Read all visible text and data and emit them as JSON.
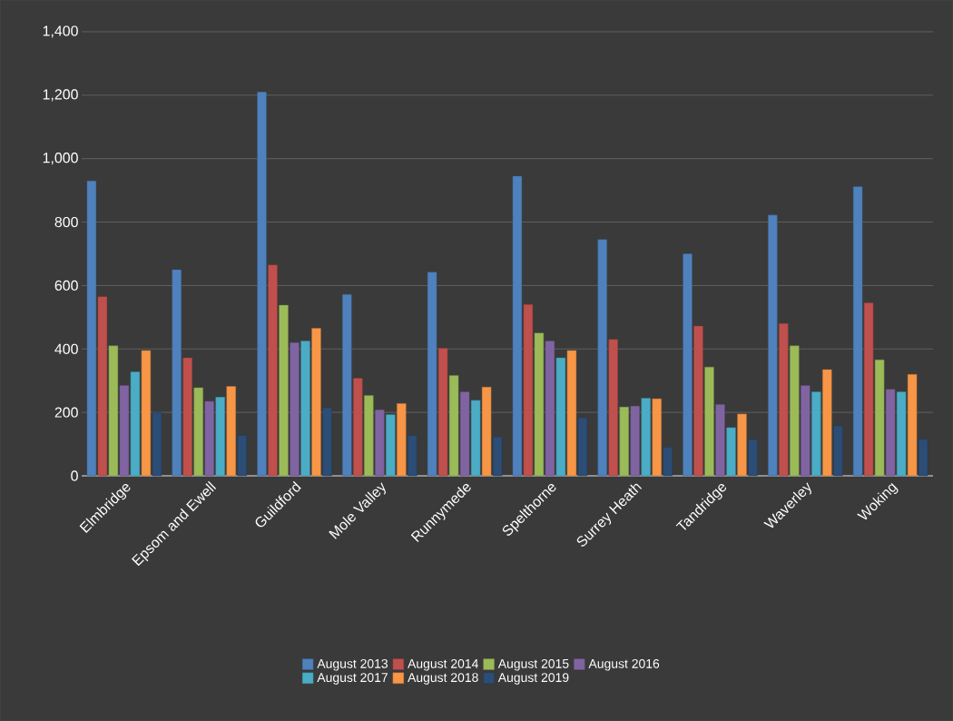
{
  "chart_data": {
    "type": "bar",
    "categories": [
      "Elmbridge",
      "Epsom and Ewell",
      "Guildford",
      "Mole Valley",
      "Runnymede",
      "Spelthorne",
      "Surrey Heath",
      "Tandridge",
      "Waverley",
      "Woking"
    ],
    "series": [
      {
        "name": "August 2013",
        "color": "#4f81bd",
        "values": [
          930,
          650,
          1210,
          572,
          642,
          945,
          745,
          700,
          822,
          912
        ]
      },
      {
        "name": "August 2014",
        "color": "#c0504d",
        "values": [
          565,
          372,
          665,
          308,
          402,
          540,
          430,
          472,
          480,
          545
        ]
      },
      {
        "name": "August 2015",
        "color": "#9bbb59",
        "values": [
          410,
          278,
          538,
          253,
          316,
          450,
          217,
          343,
          410,
          366
        ]
      },
      {
        "name": "August 2016",
        "color": "#8064a2",
        "values": [
          285,
          235,
          420,
          208,
          265,
          425,
          220,
          225,
          285,
          273
        ]
      },
      {
        "name": "August 2017",
        "color": "#4bacc6",
        "values": [
          328,
          248,
          425,
          193,
          238,
          372,
          245,
          152,
          265,
          265
        ]
      },
      {
        "name": "August 2018",
        "color": "#f79646",
        "values": [
          395,
          282,
          465,
          228,
          280,
          395,
          243,
          195,
          335,
          320
        ]
      },
      {
        "name": "August 2019",
        "color": "#2c4d75",
        "values": [
          200,
          128,
          215,
          127,
          123,
          183,
          90,
          115,
          158,
          115
        ]
      }
    ],
    "ylim": [
      0,
      1400
    ],
    "yticks": [
      0,
      200,
      400,
      600,
      800,
      {
        "value": 1000,
        "label": "1,000"
      },
      {
        "value": 1200,
        "label": "1,200"
      },
      {
        "value": 1400,
        "label": "1,400"
      }
    ],
    "grid": "y",
    "legend": "bottom"
  }
}
